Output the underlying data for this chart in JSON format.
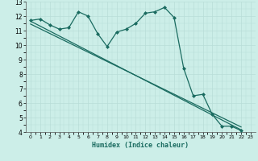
{
  "xlabel": "Humidex (Indice chaleur)",
  "bg_color": "#cceee8",
  "line_color": "#1a6b60",
  "xlim": [
    -0.5,
    23.5
  ],
  "ylim": [
    4,
    13
  ],
  "xticks": [
    0,
    1,
    2,
    3,
    4,
    5,
    6,
    7,
    8,
    9,
    10,
    11,
    12,
    13,
    14,
    15,
    16,
    17,
    18,
    19,
    20,
    21,
    22,
    23
  ],
  "yticks": [
    4,
    5,
    6,
    7,
    8,
    9,
    10,
    11,
    12,
    13
  ],
  "main_x": [
    0,
    1,
    2,
    3,
    4,
    5,
    6,
    7,
    8,
    9,
    10,
    11,
    12,
    13,
    14,
    15,
    16,
    17,
    18,
    19,
    20,
    21,
    22
  ],
  "main_y": [
    11.7,
    11.8,
    11.4,
    11.1,
    11.2,
    12.3,
    12.0,
    10.8,
    9.9,
    10.9,
    11.1,
    11.5,
    12.2,
    12.3,
    12.6,
    11.9,
    8.4,
    6.5,
    6.6,
    5.2,
    4.4,
    4.4,
    4.1
  ],
  "trend_x": [
    0,
    22
  ],
  "trend_y": [
    11.65,
    4.15
  ],
  "trend2_x": [
    0,
    22
  ],
  "trend2_y": [
    11.45,
    4.35
  ],
  "grid_color": "#b8ddd8",
  "marker": "D",
  "markersize": 2.0,
  "linewidth": 0.9
}
